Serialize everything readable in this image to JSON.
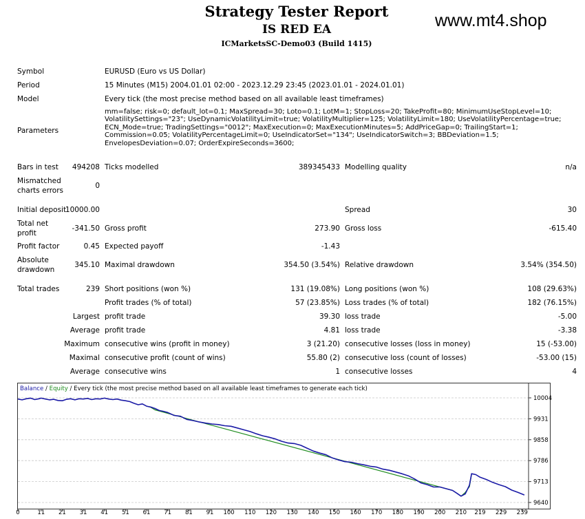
{
  "report": {
    "title": "Strategy Tester Report",
    "ea_name": "IS RED EA",
    "server": "ICMarketsSC-Demo03 (Build 1415)",
    "site": "www.mt4.shop"
  },
  "labels": {
    "symbol": "Symbol",
    "period": "Period",
    "model": "Model",
    "parameters": "Parameters",
    "bars_in_test": "Bars in test",
    "ticks_modelled": "Ticks modelled",
    "modelling_quality": "Modelling quality",
    "mismatched_l1": "Mismatched",
    "mismatched_l2": "charts errors",
    "initial_deposit": "Initial deposit",
    "spread": "Spread",
    "total_net_l1": "Total net",
    "total_net_l2": "profit",
    "gross_profit": "Gross profit",
    "gross_loss": "Gross loss",
    "profit_factor": "Profit factor",
    "expected_payoff": "Expected payoff",
    "absolute_l1": "Absolute",
    "absolute_l2": "drawdown",
    "maximal_drawdown": "Maximal drawdown",
    "relative_drawdown": "Relative drawdown",
    "total_trades": "Total trades",
    "short_positions": "Short positions (won %)",
    "long_positions": "Long positions (won %)",
    "profit_trades": "Profit trades (% of total)",
    "loss_trades": "Loss trades (% of total)",
    "largest": "Largest",
    "average": "Average",
    "maximum": "Maximum",
    "maximal": "Maximal",
    "profit_trade": "profit trade",
    "loss_trade": "loss trade",
    "consec_wins_money": "consecutive wins (profit in money)",
    "consec_losses_money": "consecutive losses (loss in money)",
    "consec_profit_count": "consecutive profit (count of wins)",
    "consec_loss_count": "consecutive loss (count of losses)",
    "consec_wins": "consecutive wins",
    "consec_losses": "consecutive losses"
  },
  "values": {
    "symbol": "EURUSD (Euro vs US Dollar)",
    "period": "15 Minutes (M15) 2004.01.01 02:00 - 2023.12.29 23:45 (2023.01.01 - 2024.01.01)",
    "model": "Every tick (the most precise method based on all available least timeframes)",
    "parameters": "mm=false; risk=0; default_lot=0.1; MaxSpread=30; Loto=0.1; LotM=1; StopLoss=20; TakeProfit=80; MinimumUseStopLevel=10; VolatilitySettings=\"23\"; UseDynamicVolatilityLimit=true; VolatilityMultiplier=125; VolatilityLimit=180; UseVolatilityPercentage=true; ECN_Mode=true; TradingSettings=\"0012\"; MaxExecution=0; MaxExecutionMinutes=5; AddPriceGap=0; TrailingStart=1; Commission=0.05; VolatilityPercentageLimit=0; UseIndicatorSet=\"134\"; UseIndicatorSwitch=3; BBDeviation=1.5; EnvelopesDeviation=0.07; OrderExpireSeconds=3600;",
    "bars_in_test": "494208",
    "ticks_modelled": "389345433",
    "modelling_quality": "n/a",
    "mismatched": "0",
    "initial_deposit": "10000.00",
    "spread": "30",
    "total_net_profit": "-341.50",
    "gross_profit": "273.90",
    "gross_loss": "-615.40",
    "profit_factor": "0.45",
    "expected_payoff": "-1.43",
    "absolute_drawdown": "345.10",
    "maximal_drawdown": "354.50 (3.54%)",
    "relative_drawdown": "3.54% (354.50)",
    "total_trades": "239",
    "short_positions": "131 (19.08%)",
    "long_positions": "108 (29.63%)",
    "profit_trades": "57 (23.85%)",
    "loss_trades": "182 (76.15%)",
    "largest_profit": "39.30",
    "largest_loss": "-5.00",
    "average_profit": "4.81",
    "average_loss": "-3.38",
    "max_consec_wins": "3 (21.20)",
    "max_consec_losses": "15 (-53.00)",
    "maximal_consec_profit": "55.80 (2)",
    "maximal_consec_loss": "-53.00 (15)",
    "avg_consec_wins": "1",
    "avg_consec_losses": "4"
  },
  "chart_legend": {
    "balance": "Balance",
    "sep": " / ",
    "equity": "Equity",
    "rest": " / Every tick (the most precise method based on all available least timeframes to generate each tick)"
  },
  "chart_data": {
    "type": "line",
    "x_ticks": [
      "0",
      "11",
      "21",
      "31",
      "41",
      "51",
      "61",
      "71",
      "81",
      "91",
      "100",
      "110",
      "120",
      "130",
      "140",
      "150",
      "160",
      "170",
      "180",
      "190",
      "200",
      "210",
      "219",
      "229",
      "239"
    ],
    "y_ticks": [
      "10004",
      "9931",
      "9858",
      "9786",
      "9713",
      "9640"
    ],
    "ylim": [
      9640,
      10004
    ],
    "xlim": [
      0,
      242
    ],
    "colors": {
      "balance": "#1a1aa6",
      "equity": "#1f8c1f",
      "grid": "#c8c8c8"
    },
    "series": [
      {
        "name": "Balance",
        "x": [
          0,
          2,
          4,
          6,
          8,
          10,
          11,
          13,
          15,
          17,
          19,
          21,
          23,
          25,
          27,
          29,
          31,
          33,
          35,
          37,
          39,
          41,
          43,
          45,
          47,
          49,
          51,
          53,
          55,
          57,
          59,
          61,
          63,
          65,
          67,
          69,
          71,
          74,
          77,
          80,
          83,
          86,
          89,
          92,
          95,
          98,
          101,
          104,
          107,
          110,
          113,
          116,
          119,
          122,
          125,
          128,
          131,
          134,
          137,
          140,
          143,
          146,
          149,
          152,
          155,
          158,
          161,
          164,
          167,
          170,
          173,
          176,
          179,
          182,
          185,
          188,
          191,
          194,
          197,
          200,
          203,
          206,
          208,
          210,
          212,
          214,
          215,
          217,
          219,
          222,
          225,
          228,
          231,
          234,
          237,
          240
        ],
        "y": [
          10000,
          9997,
          10001,
          10003,
          9998,
          10001,
          10003,
          10000,
          9997,
          9999,
          9995,
          9994,
          9999,
          10001,
          9997,
          10001,
          10000,
          10002,
          9998,
          10001,
          10000,
          10003,
          10000,
          9998,
          10000,
          9996,
          9994,
          9991,
          9985,
          9980,
          9983,
          9975,
          9972,
          9967,
          9960,
          9957,
          9953,
          9943,
          9940,
          9929,
          9925,
          9920,
          9916,
          9913,
          9911,
          9907,
          9905,
          9899,
          9893,
          9887,
          9879,
          9872,
          9867,
          9861,
          9853,
          9847,
          9845,
          9839,
          9829,
          9819,
          9812,
          9806,
          9795,
          9788,
          9782,
          9780,
          9775,
          9771,
          9766,
          9763,
          9756,
          9752,
          9746,
          9740,
          9733,
          9722,
          9708,
          9702,
          9694,
          9694,
          9688,
          9682,
          9672,
          9662,
          9670,
          9700,
          9740,
          9737,
          9728,
          9720,
          9710,
          9702,
          9695,
          9683,
          9675,
          9666
        ]
      },
      {
        "name": "Equity",
        "x": [
          61,
          63,
          65,
          67,
          206,
          208,
          210,
          212,
          214,
          215
        ],
        "y": [
          9975,
          9971,
          9962,
          9958,
          9682,
          9672,
          9662,
          9675,
          9695,
          9738
        ]
      }
    ]
  }
}
